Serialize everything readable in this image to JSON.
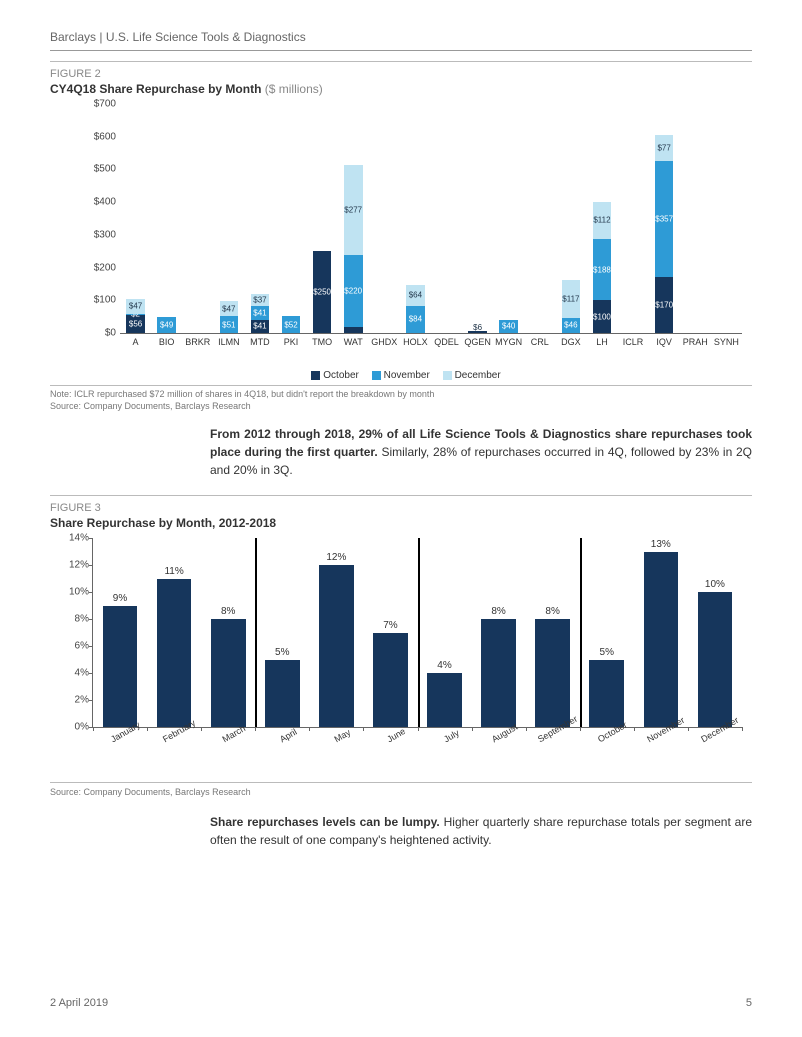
{
  "header": {
    "org": "Barclays",
    "sep": " | ",
    "doc": "U.S. Life Science Tools & Diagnostics"
  },
  "figure2": {
    "label": "FIGURE 2",
    "title_bold": "CY4Q18 Share Repurchase by Month",
    "title_light": " ($ millions)",
    "ymax": 700,
    "ytick_step": 100,
    "yticks": [
      "$700",
      "$600",
      "$500",
      "$400",
      "$300",
      "$200",
      "$100",
      "$0"
    ],
    "series_colors": {
      "oct": "#16365c",
      "nov": "#2e9bd6",
      "dec": "#bfe3f2"
    },
    "background": "#ffffff",
    "categories": [
      "A",
      "BIO",
      "BRKR",
      "ILMN",
      "MTD",
      "PKI",
      "TMO",
      "WAT",
      "GHDX",
      "HOLX",
      "QDEL",
      "QGEN",
      "MYGN",
      "CRL",
      "DGX",
      "LH",
      "ICLR",
      "IQV",
      "PRAH",
      "SYNH"
    ],
    "data": [
      {
        "oct": 56,
        "nov": 2,
        "dec": 47,
        "labels": {
          "oct": "$56",
          "nov": "$2",
          "dec": "$47"
        }
      },
      {
        "nov": 49,
        "labels": {
          "nov": "$49"
        }
      },
      {},
      {
        "nov": 51,
        "dec": 47,
        "labels": {
          "nov": "$51",
          "dec": "$47"
        }
      },
      {
        "oct": 41,
        "nov": 41,
        "dec": 37,
        "labels": {
          "oct": "$41",
          "nov": "$41",
          "dec": "$37"
        }
      },
      {
        "nov": 52,
        "labels": {
          "nov": "$52"
        }
      },
      {
        "oct": 250,
        "labels": {
          "oct": "$250"
        }
      },
      {
        "oct": 18,
        "nov": 220,
        "dec": 277,
        "labels": {
          "nov": "$220",
          "dec": "$277"
        }
      },
      {},
      {
        "nov": 84,
        "dec": 64,
        "labels": {
          "nov": "$84",
          "dec": "$64"
        }
      },
      {},
      {
        "oct": 6,
        "labels_above": {
          "oct": "$6"
        }
      },
      {
        "nov": 40,
        "labels": {
          "nov": "$40"
        }
      },
      {},
      {
        "nov": 46,
        "dec": 117,
        "labels": {
          "nov": "$46",
          "dec": "$117"
        }
      },
      {
        "oct": 100,
        "nov": 188,
        "dec": 112,
        "labels": {
          "oct": "$100",
          "nov": "$188",
          "dec": "$112"
        }
      },
      {},
      {
        "oct": 170,
        "nov": 357,
        "dec": 77,
        "labels": {
          "oct": "$170",
          "nov": "$357",
          "dec": "$77"
        }
      },
      {},
      {}
    ],
    "legend": {
      "oct": "October",
      "nov": "November",
      "dec": "December"
    },
    "note": "Note: ICLR repurchased $72 million of shares in 4Q18, but didn't report the breakdown by month",
    "source": "Source: Company Documents, Barclays Research"
  },
  "para1": {
    "bold": "From 2012 through 2018, 29% of all Life Science Tools & Diagnostics share repurchases took place during the first quarter.",
    "rest": " Similarly, 28% of repurchases occurred in 4Q, followed by 23% in 2Q and 20% in 3Q."
  },
  "figure3": {
    "label": "FIGURE 3",
    "title_bold": "Share Repurchase by Month, 2012-2018",
    "ymax": 14,
    "ytick_step": 2,
    "yticks": [
      "14%",
      "12%",
      "10%",
      "8%",
      "6%",
      "4%",
      "2%",
      "0%"
    ],
    "bar_color": "#16365c",
    "categories": [
      "January",
      "February",
      "March",
      "April",
      "May",
      "June",
      "July",
      "August",
      "September",
      "October",
      "November",
      "December"
    ],
    "values": [
      9,
      11,
      8,
      5,
      12,
      7,
      4,
      8,
      8,
      5,
      13,
      10
    ],
    "value_labels": [
      "9%",
      "11%",
      "8%",
      "5%",
      "12%",
      "7%",
      "4%",
      "8%",
      "8%",
      "5%",
      "13%",
      "10%"
    ],
    "quarter_breaks_after_index": [
      2,
      5,
      8
    ],
    "source": "Source: Company Documents, Barclays Research"
  },
  "para2": {
    "bold": "Share repurchases levels can be lumpy.",
    "rest": " Higher quarterly share repurchase totals per segment are often the result of one company's heightened activity."
  },
  "footer": {
    "date": "2 April 2019",
    "page": "5"
  }
}
